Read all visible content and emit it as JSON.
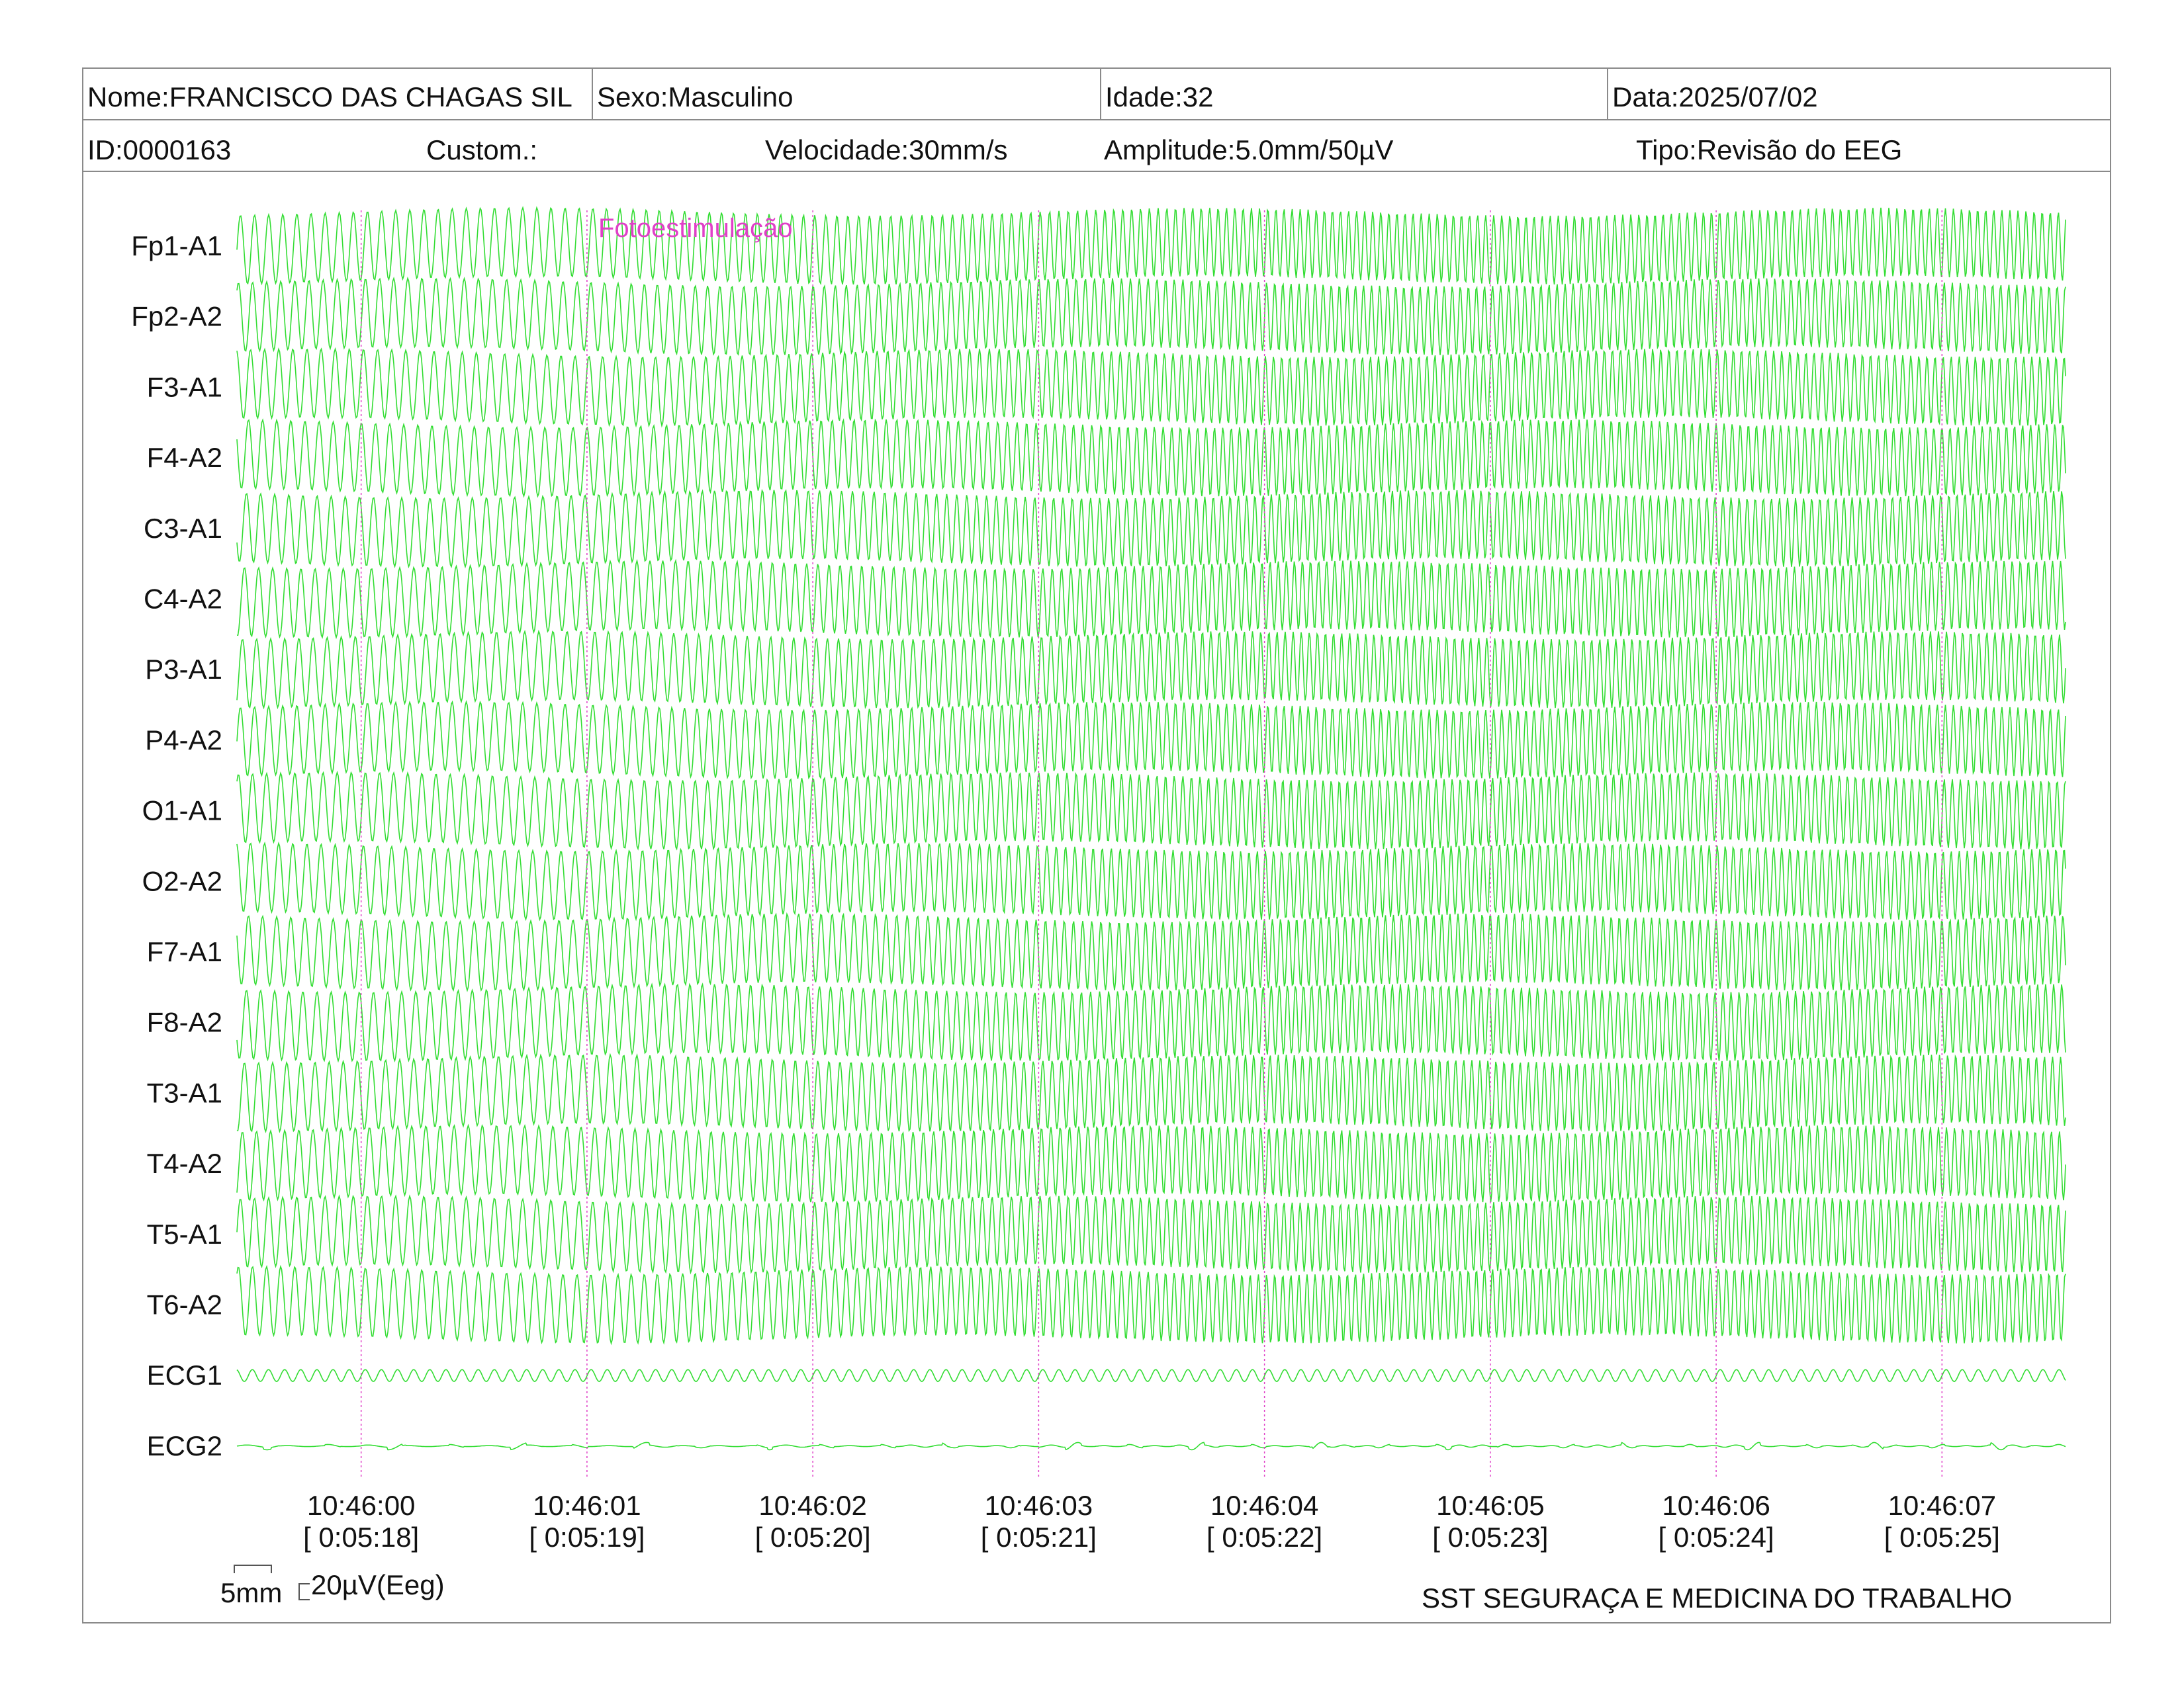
{
  "header": {
    "name": "Nome:FRANCISCO DAS CHAGAS SIL",
    "sex": "Sexo:Masculino",
    "age": "Idade:32",
    "date": "Data:2025/07/02",
    "id": "ID:0000163",
    "custom": "Custom.:",
    "speed": "Velocidade:30mm/s",
    "amplitude": "Amplitude:5.0mm/50µV",
    "type": "Tipo:Revisão do EEG"
  },
  "chart_data": {
    "type": "line",
    "title": "",
    "channels": [
      "Fp1-A1",
      "Fp2-A2",
      "F3-A1",
      "F4-A2",
      "C3-A1",
      "C4-A2",
      "P3-A1",
      "P4-A2",
      "O1-A1",
      "O2-A2",
      "F7-A1",
      "F8-A2",
      "T3-A1",
      "T4-A2",
      "T5-A1",
      "T6-A2",
      "ECG1",
      "ECG2"
    ],
    "time_ticks": [
      {
        "clock": "10:46:00",
        "elapsed": "[ 0:05:18]"
      },
      {
        "clock": "10:46:01",
        "elapsed": "[ 0:05:19]"
      },
      {
        "clock": "10:46:02",
        "elapsed": "[ 0:05:20]"
      },
      {
        "clock": "10:46:03",
        "elapsed": "[ 0:05:21]"
      },
      {
        "clock": "10:46:04",
        "elapsed": "[ 0:05:22]"
      },
      {
        "clock": "10:46:05",
        "elapsed": "[ 0:05:23]"
      },
      {
        "clock": "10:46:06",
        "elapsed": "[ 0:05:24]"
      },
      {
        "clock": "10:46:07",
        "elapsed": "[ 0:05:25]"
      }
    ],
    "x_range_seconds": [
      -0.55,
      7.55
    ],
    "annotations": [
      {
        "text": "Fotoestimulação",
        "time_s": 1.05
      }
    ],
    "signal_freq_hz": {
      "start": 16,
      "end": 28
    },
    "trace_color": "#33dd33",
    "marker_color": "#e040c8",
    "scale_bar": {
      "time_label": "5mm",
      "amplitude_label": "20µV(Eeg)"
    },
    "grid": false
  },
  "footer": "SST SEGURAÇA E MEDICINA DO TRABALHO"
}
